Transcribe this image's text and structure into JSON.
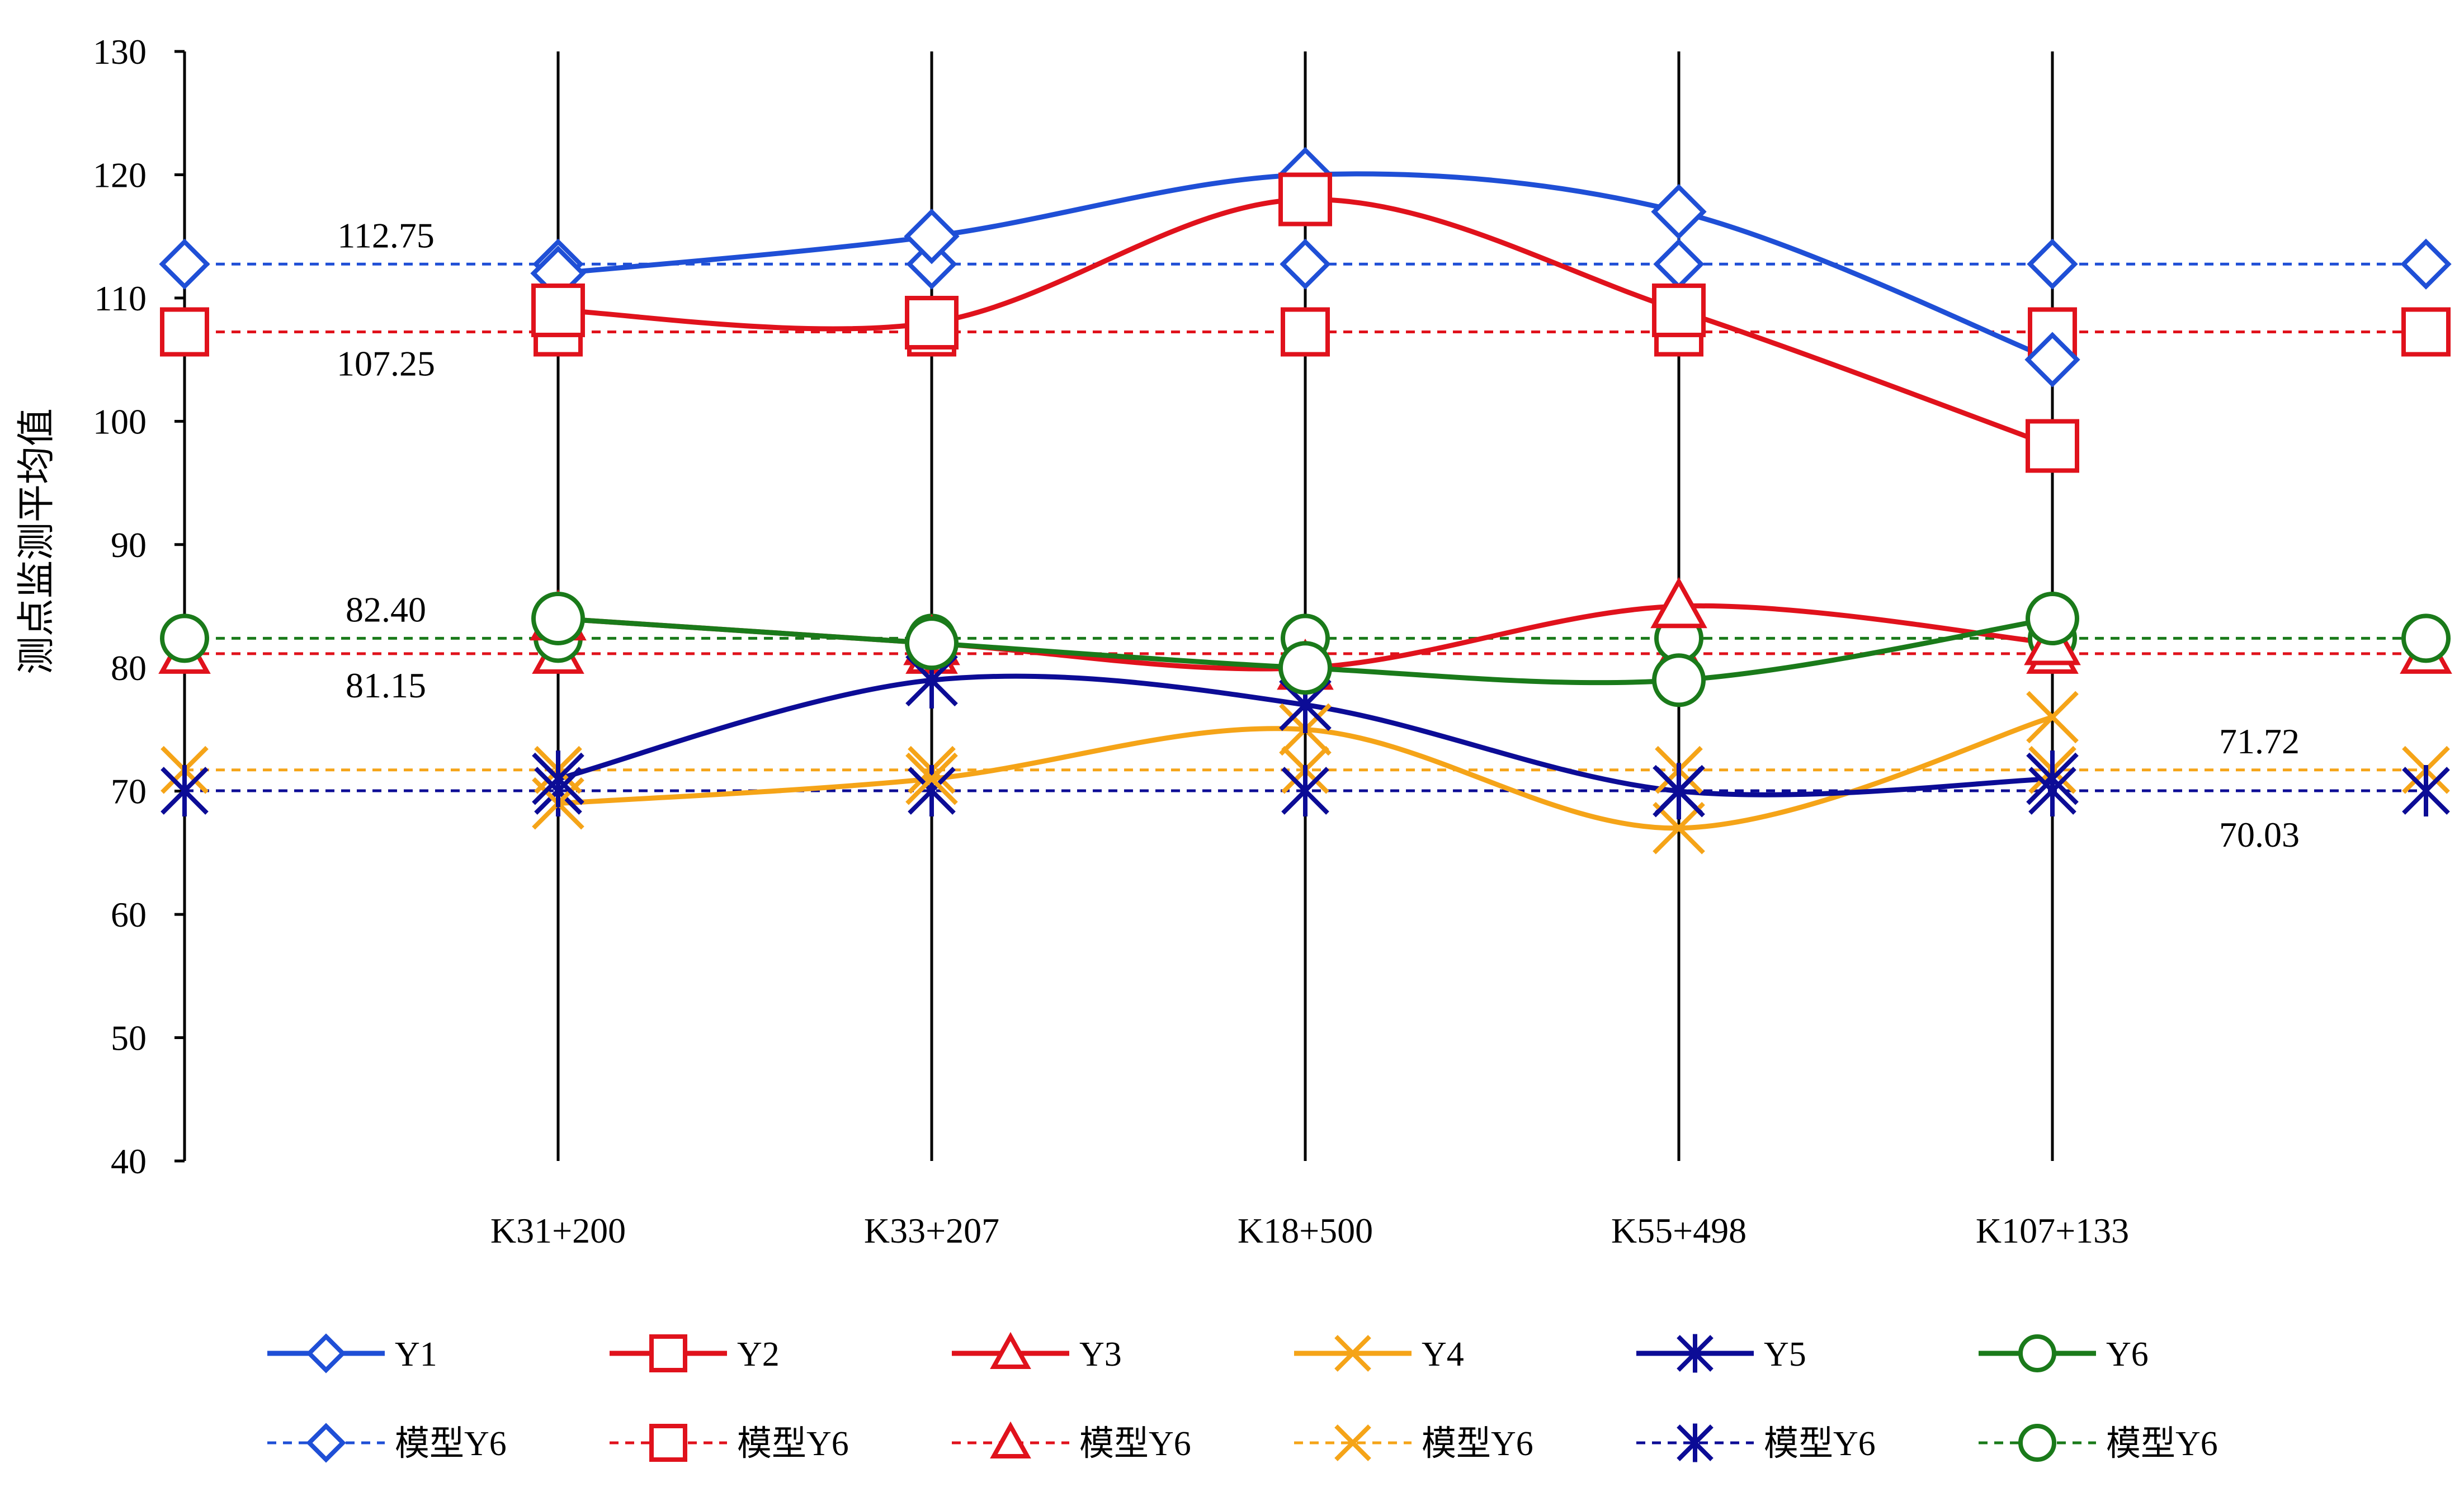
{
  "chart_data": {
    "type": "line",
    "title": "",
    "xlabel": "",
    "ylabel": "测点监测平均值",
    "ylim": [
      40,
      130
    ],
    "yticks": [
      40,
      50,
      60,
      70,
      80,
      90,
      100,
      110,
      120,
      130
    ],
    "grid": "vertical lines at categories",
    "legend_placement": "bottom",
    "categories": [
      "K31+200",
      "K33+207",
      "K18+500",
      "K55+498",
      "K107+133"
    ],
    "series": [
      {
        "name": "Y1",
        "color": "#1f4fd6",
        "marker": "diamond",
        "values": [
          112,
          115,
          120,
          117,
          105
        ]
      },
      {
        "name": "Y2",
        "color": "#e0121c",
        "marker": "square",
        "values": [
          109,
          108,
          118,
          109,
          98
        ]
      },
      {
        "name": "Y3",
        "color": "#e0121c",
        "marker": "triangle",
        "values": [
          84,
          82,
          80,
          85,
          82
        ]
      },
      {
        "name": "Y4",
        "color": "#f5a418",
        "marker": "x",
        "values": [
          69,
          71,
          75,
          67,
          76
        ]
      },
      {
        "name": "Y5",
        "color": "#0c0c96",
        "marker": "star",
        "values": [
          71,
          79,
          77,
          70,
          71
        ]
      },
      {
        "name": "Y6",
        "color": "#1a7a1a",
        "marker": "circle",
        "values": [
          84,
          82,
          80,
          79,
          84
        ]
      }
    ],
    "model_lines": [
      {
        "name": "模型Y6",
        "color": "#1f4fd6",
        "marker": "diamond",
        "value": 112.75,
        "label": "112.75",
        "label_side": "left-above"
      },
      {
        "name": "模型Y6",
        "color": "#e0121c",
        "marker": "square",
        "value": 107.25,
        "label": "107.25",
        "label_side": "left-below"
      },
      {
        "name": "模型Y6",
        "color": "#e0121c",
        "marker": "triangle",
        "value": 81.15,
        "label": "81.15",
        "label_side": "left-below"
      },
      {
        "name": "模型Y6",
        "color": "#f5a418",
        "marker": "x",
        "value": 71.72,
        "label": "71.72",
        "label_side": "right-above"
      },
      {
        "name": "模型Y6",
        "color": "#0c0c96",
        "marker": "star",
        "value": 70.03,
        "label": "70.03",
        "label_side": "right-below"
      },
      {
        "name": "模型Y6",
        "color": "#1a7a1a",
        "marker": "circle",
        "value": 82.4,
        "label": "82.40",
        "label_side": "left-above"
      }
    ]
  }
}
